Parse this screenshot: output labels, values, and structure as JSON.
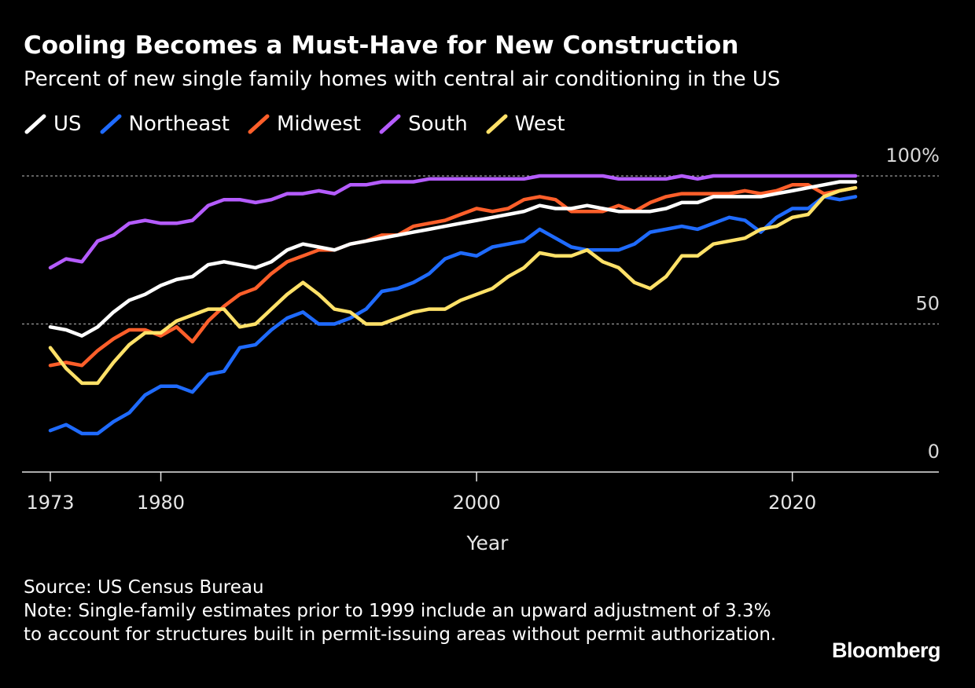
{
  "header": {
    "title": "Cooling Becomes a Must-Have for New Construction",
    "subtitle": "Percent of new single family homes with central air conditioning in the US"
  },
  "footer": {
    "source": "Source: US Census Bureau",
    "note": "Note: Single-family estimates prior to 1999 include an upward adjustment of 3.3% to account for structures built in permit-issuing areas without permit authorization."
  },
  "brand": {
    "logo": "Bloomberg"
  },
  "chart_data": {
    "type": "line",
    "title": "Cooling Becomes a Must-Have for New Construction",
    "subtitle": "Percent of new single family homes with central air conditioning in the US",
    "xlabel": "Year",
    "ylabel": "",
    "xlim": [
      1971,
      2030
    ],
    "ylim": [
      0,
      100
    ],
    "x_ticks": [
      1973,
      1980,
      2000,
      2020
    ],
    "y_ticks": [
      0,
      50,
      100
    ],
    "y_tick_labels": [
      "0",
      "50",
      "100%"
    ],
    "grid": "dotted horizontal lines at 50 and 100",
    "legend_position": "top-left",
    "x": [
      1973,
      1974,
      1975,
      1976,
      1977,
      1978,
      1979,
      1980,
      1981,
      1982,
      1983,
      1984,
      1985,
      1986,
      1987,
      1988,
      1989,
      1990,
      1991,
      1992,
      1993,
      1994,
      1995,
      1996,
      1997,
      1998,
      1999,
      2000,
      2001,
      2002,
      2003,
      2004,
      2005,
      2006,
      2007,
      2008,
      2009,
      2010,
      2011,
      2012,
      2013,
      2014,
      2015,
      2016,
      2017,
      2018,
      2019,
      2020,
      2021,
      2022,
      2023,
      2024
    ],
    "series": [
      {
        "name": "US",
        "color": "#ffffff",
        "values": [
          49,
          48,
          46,
          49,
          54,
          58,
          60,
          63,
          65,
          66,
          70,
          71,
          70,
          69,
          71,
          75,
          77,
          76,
          75,
          77,
          78,
          79,
          80,
          81,
          82,
          83,
          84,
          85,
          86,
          87,
          88,
          90,
          89,
          89,
          90,
          89,
          88,
          88,
          88,
          89,
          91,
          91,
          93,
          93,
          93,
          93,
          94,
          95,
          96,
          97,
          98,
          98
        ]
      },
      {
        "name": "Northeast",
        "color": "#1f6bff",
        "values": [
          14,
          16,
          13,
          13,
          17,
          20,
          26,
          29,
          29,
          27,
          33,
          34,
          42,
          43,
          48,
          52,
          54,
          50,
          50,
          52,
          55,
          61,
          62,
          64,
          67,
          72,
          74,
          73,
          76,
          77,
          78,
          82,
          79,
          76,
          75,
          75,
          75,
          77,
          81,
          82,
          83,
          82,
          84,
          86,
          85,
          81,
          86,
          89,
          89,
          93,
          92,
          93
        ]
      },
      {
        "name": "Midwest",
        "color": "#ff5f2a",
        "values": [
          36,
          37,
          36,
          41,
          45,
          48,
          48,
          46,
          49,
          44,
          51,
          56,
          60,
          62,
          67,
          71,
          73,
          75,
          75,
          77,
          78,
          80,
          80,
          83,
          84,
          85,
          87,
          89,
          88,
          89,
          92,
          93,
          92,
          88,
          88,
          88,
          90,
          88,
          91,
          93,
          94,
          94,
          94,
          94,
          95,
          94,
          95,
          97,
          97,
          94,
          95,
          96
        ]
      },
      {
        "name": "South",
        "color": "#b55cff",
        "values": [
          69,
          72,
          71,
          78,
          80,
          84,
          85,
          84,
          84,
          85,
          90,
          92,
          92,
          91,
          92,
          94,
          94,
          95,
          94,
          97,
          97,
          98,
          98,
          98,
          99,
          99,
          99,
          99,
          99,
          99,
          99,
          100,
          100,
          100,
          100,
          100,
          99,
          99,
          99,
          99,
          100,
          99,
          100,
          100,
          100,
          100,
          100,
          100,
          100,
          100,
          100,
          100
        ]
      },
      {
        "name": "West",
        "color": "#ffe168",
        "values": [
          42,
          35,
          30,
          30,
          37,
          43,
          47,
          47,
          51,
          53,
          55,
          55,
          49,
          50,
          55,
          60,
          64,
          60,
          55,
          54,
          50,
          50,
          52,
          54,
          55,
          55,
          58,
          60,
          62,
          66,
          69,
          74,
          73,
          73,
          75,
          71,
          69,
          64,
          62,
          66,
          73,
          73,
          77,
          78,
          79,
          82,
          83,
          86,
          87,
          93,
          95,
          96
        ]
      }
    ]
  }
}
